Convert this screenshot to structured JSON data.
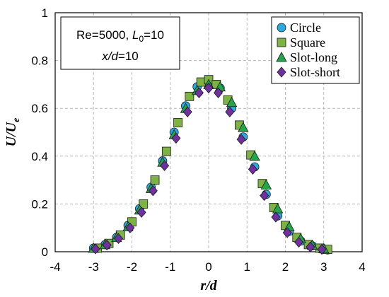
{
  "chart_data": {
    "type": "scatter",
    "xlabel": "r/d",
    "ylabel": "U/U",
    "ylabel_sub": "e",
    "xlim": [
      -4,
      4
    ],
    "ylim": [
      0,
      1
    ],
    "xticks": [
      "-4",
      "-3",
      "-2",
      "-1",
      "0",
      "1",
      "2",
      "3",
      "4"
    ],
    "yticks": [
      "0",
      "0.2",
      "0.4",
      "0.6",
      "0.8",
      "1"
    ],
    "grid": "dashed",
    "legend_position": "top-right",
    "annotation": {
      "line1_prefix": "Re=5000, ",
      "line1_var": "L",
      "line1_sub": "0",
      "line1_suffix": "=10",
      "line2_var": "x/d",
      "line2_suffix": "=10"
    },
    "series": [
      {
        "name": "Circle",
        "marker": "circle",
        "color": "#29abe2",
        "x": [
          -3.0,
          -2.7,
          -2.4,
          -2.1,
          -1.8,
          -1.5,
          -1.2,
          -0.9,
          -0.6,
          -0.3,
          0.0,
          0.3,
          0.6,
          0.9,
          1.2,
          1.5,
          1.8,
          2.1,
          2.4,
          2.7,
          3.0,
          3.1
        ],
        "y": [
          0.015,
          0.03,
          0.06,
          0.11,
          0.18,
          0.27,
          0.38,
          0.5,
          0.61,
          0.69,
          0.705,
          0.685,
          0.6,
          0.48,
          0.355,
          0.24,
          0.15,
          0.085,
          0.045,
          0.025,
          0.012,
          0.008
        ]
      },
      {
        "name": "Square",
        "marker": "square",
        "color": "#7cb342",
        "x": [
          -2.9,
          -2.6,
          -2.3,
          -2.0,
          -1.7,
          -1.4,
          -1.1,
          -0.8,
          -0.5,
          -0.2,
          0.0,
          0.2,
          0.5,
          0.8,
          1.1,
          1.4,
          1.7,
          2.0,
          2.3,
          2.6,
          2.9,
          3.1
        ],
        "y": [
          0.015,
          0.035,
          0.07,
          0.125,
          0.2,
          0.3,
          0.42,
          0.54,
          0.65,
          0.71,
          0.72,
          0.7,
          0.635,
          0.53,
          0.405,
          0.285,
          0.185,
          0.11,
          0.06,
          0.03,
          0.015,
          0.01
        ]
      },
      {
        "name": "Slot-long",
        "marker": "triangle",
        "color": "#21a74a",
        "x": [
          -3.0,
          -2.7,
          -2.4,
          -2.1,
          -1.8,
          -1.5,
          -1.2,
          -0.9,
          -0.6,
          -0.3,
          0.0,
          0.3,
          0.6,
          0.9,
          1.2,
          1.5,
          1.8,
          2.1,
          2.4,
          2.7,
          3.0
        ],
        "y": [
          0.015,
          0.03,
          0.06,
          0.105,
          0.175,
          0.265,
          0.375,
          0.49,
          0.6,
          0.675,
          0.7,
          0.69,
          0.625,
          0.52,
          0.4,
          0.28,
          0.18,
          0.105,
          0.055,
          0.028,
          0.013
        ]
      },
      {
        "name": "Slot-short",
        "marker": "diamond",
        "color": "#7030a0",
        "x": [
          -2.95,
          -2.65,
          -2.35,
          -2.05,
          -1.75,
          -1.45,
          -1.15,
          -0.85,
          -0.55,
          -0.25,
          0.0,
          0.25,
          0.55,
          0.85,
          1.15,
          1.45,
          1.75,
          2.05,
          2.35,
          2.65,
          2.95
        ],
        "y": [
          0.012,
          0.028,
          0.055,
          0.1,
          0.165,
          0.255,
          0.36,
          0.475,
          0.585,
          0.665,
          0.685,
          0.665,
          0.585,
          0.47,
          0.345,
          0.235,
          0.145,
          0.08,
          0.04,
          0.02,
          0.01
        ]
      }
    ]
  }
}
